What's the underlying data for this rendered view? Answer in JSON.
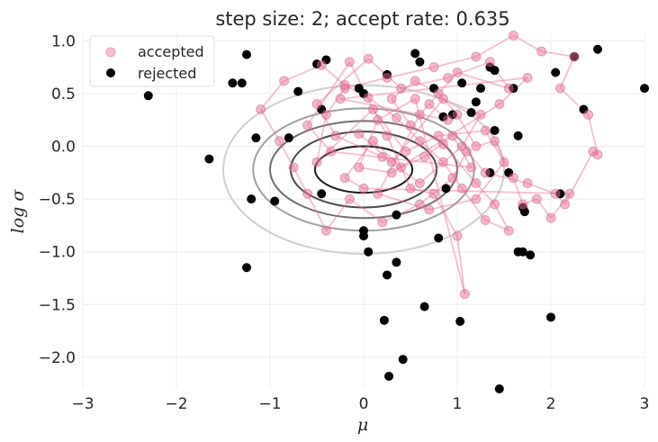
{
  "chart_data": {
    "type": "scatter",
    "title": "step size: 2; accept rate: 0.635",
    "xlabel": "μ",
    "ylabel": "log σ",
    "xlim": [
      -3,
      3
    ],
    "ylim": [
      -2.3,
      1.08
    ],
    "xticks": [
      -3,
      -2,
      -1,
      0,
      1,
      2,
      3
    ],
    "xtick_labels": [
      "−3",
      "−2",
      "−1",
      "0",
      "1",
      "2",
      "3"
    ],
    "yticks": [
      1.0,
      0.5,
      0.0,
      -0.5,
      -1.0,
      -1.5,
      -2.0
    ],
    "ytick_labels": [
      "1.0",
      "0.5",
      "0.0",
      "−0.5",
      "−1.0",
      "−1.5",
      "−2.0"
    ],
    "grid": true,
    "legend_position": "top-left",
    "legend": [
      {
        "label": "accepted",
        "color": "#e8709a"
      },
      {
        "label": "rejected",
        "color": "#000000"
      }
    ],
    "contours": {
      "center": [
        0.0,
        -0.22
      ],
      "levels": [
        {
          "rx": 0.52,
          "ry": 0.22,
          "color": "#1a1a1a"
        },
        {
          "rx": 0.78,
          "ry": 0.36,
          "color": "#4a4a4a"
        },
        {
          "rx": 1.0,
          "ry": 0.46,
          "color": "#707070"
        },
        {
          "rx": 1.18,
          "ry": 0.58,
          "color": "#a0a0a0"
        },
        {
          "rx": 1.5,
          "ry": 0.8,
          "color": "#d0d0d0"
        }
      ]
    },
    "accepted": [
      [
        -0.05,
        0.12
      ],
      [
        0.3,
        -0.15
      ],
      [
        0.85,
        0.45
      ],
      [
        1.25,
        0.3
      ],
      [
        1.05,
        0.0
      ],
      [
        0.6,
        -0.35
      ],
      [
        0.2,
        -0.1
      ],
      [
        -0.3,
        0.1
      ],
      [
        -0.5,
        0.4
      ],
      [
        0.05,
        0.83
      ],
      [
        0.4,
        0.55
      ],
      [
        0.9,
        0.65
      ],
      [
        1.35,
        0.8
      ],
      [
        1.55,
        0.55
      ],
      [
        1.0,
        0.7
      ],
      [
        0.6,
        0.3
      ],
      [
        0.15,
        -0.45
      ],
      [
        0.7,
        -0.6
      ],
      [
        1.2,
        -0.5
      ],
      [
        1.5,
        -0.15
      ],
      [
        1.3,
        0.15
      ],
      [
        0.8,
        0.1
      ],
      [
        0.45,
        -0.05
      ],
      [
        0.1,
        0.35
      ],
      [
        -0.5,
        -0.15
      ],
      [
        -0.4,
        0.3
      ],
      [
        -0.2,
        0.55
      ],
      [
        0.25,
        0.65
      ],
      [
        0.75,
        0.75
      ],
      [
        1.2,
        0.85
      ],
      [
        1.6,
        1.05
      ],
      [
        1.9,
        0.9
      ],
      [
        2.25,
        0.85
      ],
      [
        2.1,
        0.55
      ],
      [
        2.4,
        0.3
      ],
      [
        2.5,
        -0.08
      ],
      [
        2.45,
        -0.05
      ],
      [
        2.15,
        -0.55
      ],
      [
        2.05,
        -0.45
      ],
      [
        1.75,
        -0.35
      ],
      [
        1.3,
        -0.25
      ],
      [
        1.1,
        -0.05
      ],
      [
        0.95,
        -0.3
      ],
      [
        0.6,
        -0.55
      ],
      [
        0.2,
        -0.72
      ],
      [
        -0.15,
        -0.5
      ],
      [
        -0.4,
        -0.8
      ],
      [
        -0.6,
        -0.45
      ],
      [
        -0.75,
        -0.2
      ],
      [
        -0.9,
        0.05
      ],
      [
        -1.1,
        0.35
      ],
      [
        -0.85,
        0.62
      ],
      [
        -0.45,
        0.77
      ],
      [
        -0.2,
        0.58
      ],
      [
        0.05,
        0.46
      ],
      [
        0.35,
        0.27
      ],
      [
        0.6,
        0.05
      ],
      [
        0.85,
        -0.15
      ],
      [
        1.05,
        -0.4
      ],
      [
        1.3,
        -0.7
      ],
      [
        1.55,
        -0.8
      ],
      [
        1.4,
        -0.55
      ],
      [
        1.2,
        -0.35
      ],
      [
        0.85,
        0.02
      ],
      [
        0.5,
        0.2
      ],
      [
        0.3,
        0.45
      ],
      [
        0.55,
        0.62
      ],
      [
        0.8,
        0.5
      ],
      [
        1.0,
        0.3
      ],
      [
        1.2,
        0.0
      ],
      [
        1.4,
        0.05
      ],
      [
        1.6,
        -0.3
      ],
      [
        1.7,
        -0.55
      ],
      [
        1.85,
        -0.5
      ],
      [
        2.0,
        -0.68
      ],
      [
        2.2,
        -0.45
      ],
      [
        0.0,
        -0.4
      ],
      [
        -0.2,
        -0.3
      ],
      [
        0.1,
        0.05
      ],
      [
        0.4,
        -0.2
      ],
      [
        0.65,
        -0.1
      ],
      [
        0.95,
        0.1
      ],
      [
        1.15,
        -0.2
      ],
      [
        -0.35,
        -0.05
      ],
      [
        -0.6,
        0.2
      ],
      [
        -0.15,
        0.8
      ],
      [
        0.25,
        0.1
      ],
      [
        0.5,
        -0.4
      ],
      [
        0.75,
        -0.45
      ],
      [
        1.0,
        -0.85
      ],
      [
        1.08,
        -1.4
      ],
      [
        0.55,
        0.45
      ],
      [
        0.15,
        0.25
      ],
      [
        -0.05,
        -0.2
      ],
      [
        0.3,
        -0.25
      ],
      [
        1.45,
        0.4
      ],
      [
        1.75,
        0.65
      ],
      [
        -0.25,
        0.45
      ],
      [
        0.9,
        0.25
      ],
      [
        0.7,
        0.4
      ]
    ],
    "rejected": [
      [
        -2.3,
        0.48
      ],
      [
        -1.65,
        -0.12
      ],
      [
        -1.25,
        0.87
      ],
      [
        -1.4,
        0.6
      ],
      [
        -1.3,
        0.6
      ],
      [
        -1.2,
        -0.5
      ],
      [
        -1.25,
        -1.15
      ],
      [
        -1.15,
        0.08
      ],
      [
        -0.95,
        -0.52
      ],
      [
        -0.7,
        0.52
      ],
      [
        -0.5,
        0.78
      ],
      [
        -0.4,
        0.82
      ],
      [
        -0.05,
        0.55
      ],
      [
        0.0,
        0.5
      ],
      [
        0.25,
        0.68
      ],
      [
        0.55,
        0.88
      ],
      [
        0.6,
        0.8
      ],
      [
        0.75,
        0.55
      ],
      [
        0.95,
        0.3
      ],
      [
        1.05,
        0.6
      ],
      [
        1.25,
        0.55
      ],
      [
        1.35,
        0.75
      ],
      [
        1.4,
        0.72
      ],
      [
        1.6,
        0.55
      ],
      [
        2.05,
        0.7
      ],
      [
        2.25,
        0.85
      ],
      [
        2.35,
        0.35
      ],
      [
        2.5,
        0.92
      ],
      [
        3.0,
        0.55
      ],
      [
        0.0,
        -0.85
      ],
      [
        0.05,
        -1.0
      ],
      [
        0.25,
        -1.22
      ],
      [
        0.35,
        -1.1
      ],
      [
        0.22,
        -1.65
      ],
      [
        0.27,
        -2.18
      ],
      [
        0.42,
        -2.02
      ],
      [
        0.65,
        -1.52
      ],
      [
        1.03,
        -1.66
      ],
      [
        1.45,
        -2.3
      ],
      [
        2.0,
        -1.62
      ],
      [
        1.65,
        -1.0
      ],
      [
        1.7,
        -1.0
      ],
      [
        1.78,
        -1.03
      ],
      [
        1.72,
        -0.62
      ],
      [
        1.7,
        -0.58
      ],
      [
        2.1,
        -0.45
      ],
      [
        1.65,
        0.1
      ],
      [
        1.55,
        -0.25
      ],
      [
        1.35,
        -0.25
      ],
      [
        1.15,
        0.32
      ],
      [
        0.8,
        -0.87
      ],
      [
        0.88,
        -0.4
      ],
      [
        0.35,
        -0.65
      ],
      [
        -0.45,
        -0.45
      ],
      [
        0.0,
        -0.8
      ],
      [
        1.2,
        0.42
      ],
      [
        0.85,
        0.28
      ],
      [
        1.4,
        0.15
      ],
      [
        -0.8,
        0.08
      ],
      [
        -0.45,
        0.35
      ]
    ]
  }
}
